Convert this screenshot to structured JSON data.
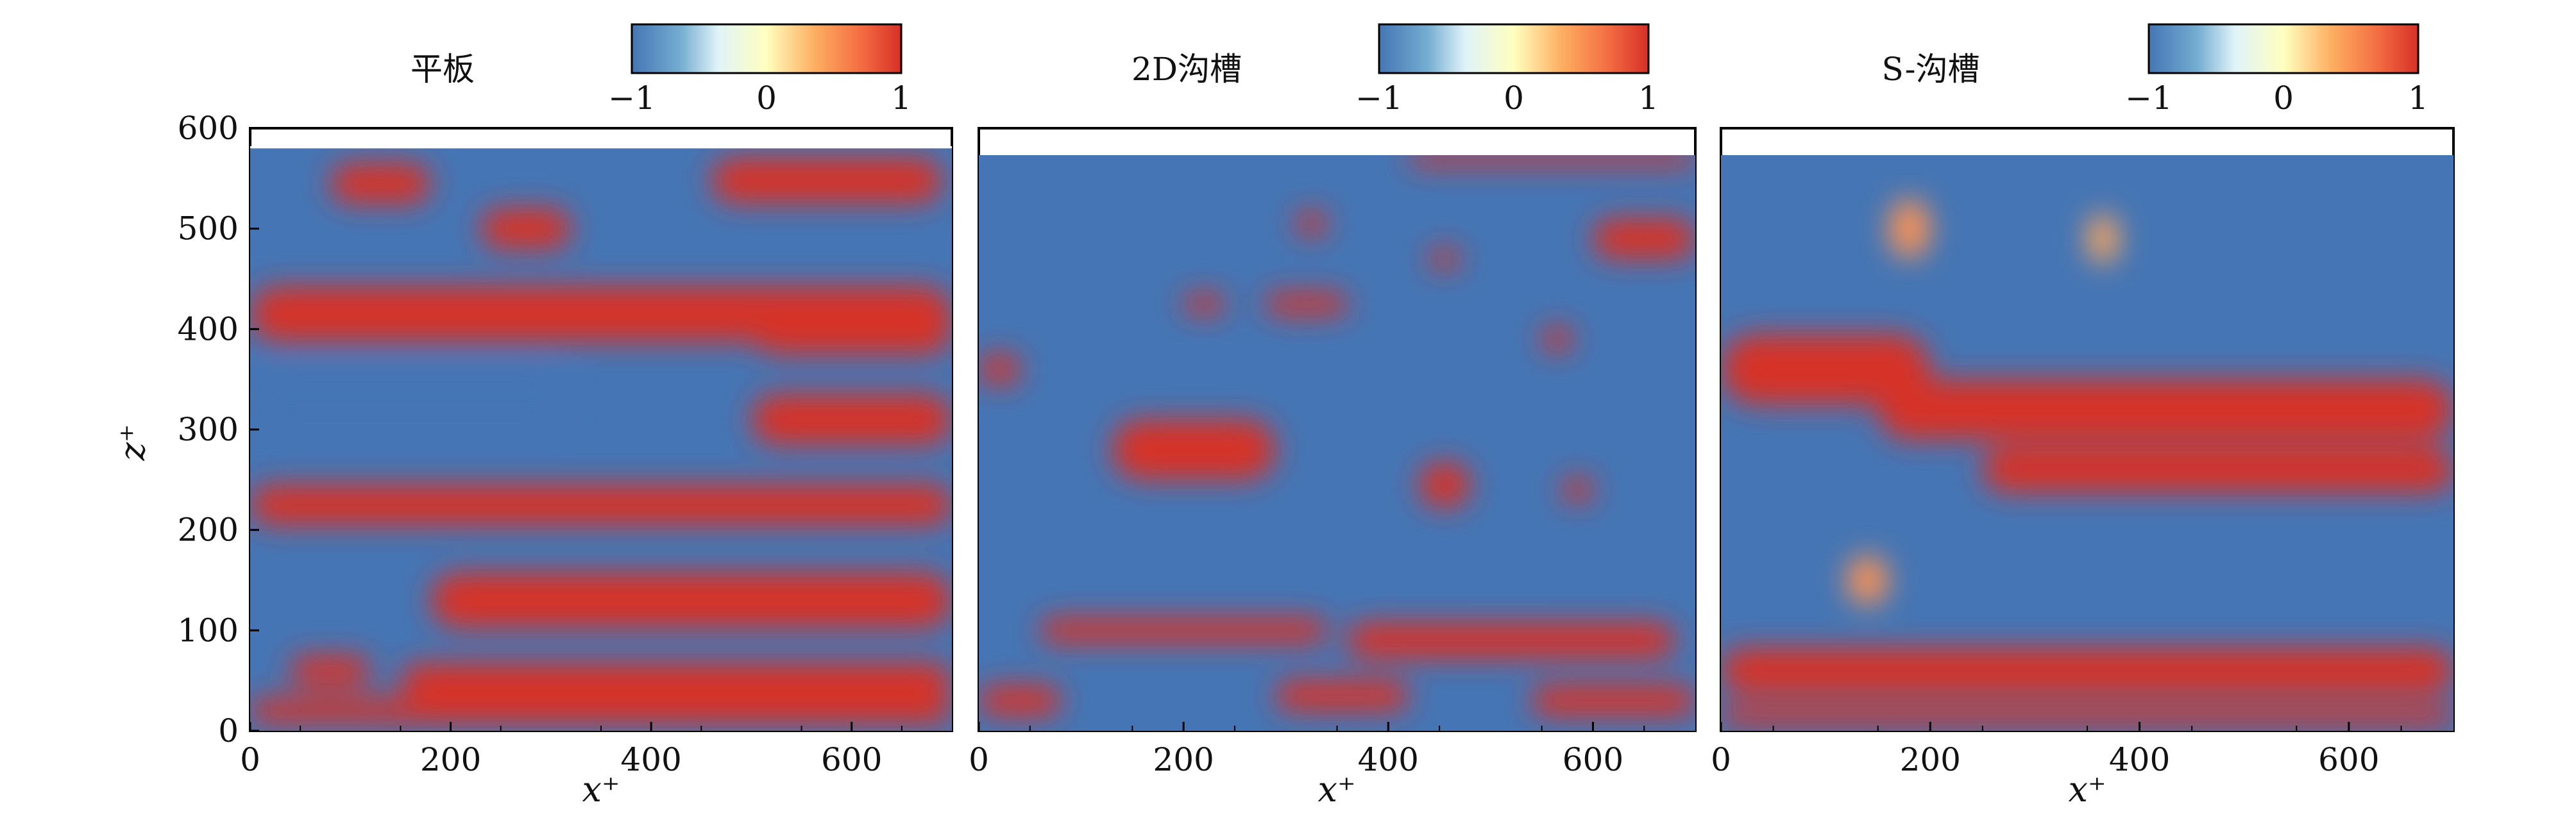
{
  "chart_data": [
    {
      "type": "heatmap",
      "title": "平板",
      "xlabel": "x⁺",
      "ylabel": "z⁺",
      "xlim": [
        0,
        700
      ],
      "ylim": [
        0,
        600
      ],
      "data_extent_z": 580,
      "xticks": [
        "0",
        "200",
        "400",
        "600"
      ],
      "yticks": [
        "0",
        "100",
        "200",
        "300",
        "400",
        "500",
        "600"
      ],
      "colorbar": {
        "min": -1,
        "max": 1,
        "ticks": [
          "−1",
          "0",
          "1"
        ],
        "colormap": "RdYlBu_r"
      },
      "streaks": [
        {
          "z": 545,
          "x0": 80,
          "x1": 180,
          "v": 1,
          "w": 40
        },
        {
          "z": 548,
          "x0": 460,
          "x1": 690,
          "v": 1,
          "w": 45
        },
        {
          "z": 500,
          "x0": 230,
          "x1": 320,
          "v": 1,
          "w": 40
        },
        {
          "z": 415,
          "x0": 0,
          "x1": 700,
          "v": 1,
          "w": 55
        },
        {
          "z": 400,
          "x0": 500,
          "x1": 700,
          "v": 1,
          "w": 50
        },
        {
          "z": 330,
          "x0": 0,
          "x1": 320,
          "v": -1,
          "w": 55
        },
        {
          "z": 310,
          "x0": 500,
          "x1": 700,
          "v": 1,
          "w": 50
        },
        {
          "z": 225,
          "x0": 0,
          "x1": 700,
          "v": 1,
          "w": 40
        },
        {
          "z": 130,
          "x0": 180,
          "x1": 700,
          "v": 1,
          "w": 55
        },
        {
          "z": 60,
          "x0": 40,
          "x1": 120,
          "v": 1,
          "w": 30
        },
        {
          "z": 50,
          "x0": 150,
          "x1": 700,
          "v": 1,
          "w": 35
        },
        {
          "z": 20,
          "x0": 0,
          "x1": 700,
          "v": 1,
          "w": 25
        }
      ]
    },
    {
      "type": "heatmap",
      "title": "2D沟槽",
      "xlabel": "x⁺",
      "xlim": [
        0,
        700
      ],
      "ylim": [
        0,
        600
      ],
      "data_extent_z": 575,
      "xticks": [
        "0",
        "200",
        "400",
        "600"
      ],
      "colorbar": {
        "min": -1,
        "max": 1,
        "ticks": [
          "−1",
          "0",
          "1"
        ],
        "colormap": "RdYlBu_r"
      },
      "streaks": [
        {
          "z": 570,
          "x0": 420,
          "x1": 700,
          "v": 1,
          "w": 15
        },
        {
          "z": 490,
          "x0": 600,
          "x1": 700,
          "v": 1,
          "w": 40
        },
        {
          "z": 505,
          "x0": 310,
          "x1": 340,
          "v": 1,
          "w": 25
        },
        {
          "z": 470,
          "x0": 440,
          "x1": 470,
          "v": 1,
          "w": 20
        },
        {
          "z": 425,
          "x0": 200,
          "x1": 240,
          "v": 1,
          "w": 20
        },
        {
          "z": 425,
          "x0": 280,
          "x1": 360,
          "v": 1,
          "w": 22
        },
        {
          "z": 390,
          "x0": 550,
          "x1": 580,
          "v": 1,
          "w": 25
        },
        {
          "z": 280,
          "x0": 130,
          "x1": 290,
          "v": 1,
          "w": 60
        },
        {
          "z": 245,
          "x0": 430,
          "x1": 480,
          "v": 1,
          "w": 45
        },
        {
          "z": 240,
          "x0": 570,
          "x1": 600,
          "v": 1,
          "w": 25
        },
        {
          "z": 360,
          "x0": 0,
          "x1": 40,
          "v": 1,
          "w": 30
        },
        {
          "z": 100,
          "x0": 60,
          "x1": 340,
          "v": 1,
          "w": 25
        },
        {
          "z": 90,
          "x0": 360,
          "x1": 680,
          "v": 1,
          "w": 35
        },
        {
          "z": 30,
          "x0": 0,
          "x1": 80,
          "v": 1,
          "w": 30
        },
        {
          "z": 35,
          "x0": 290,
          "x1": 420,
          "v": 1,
          "w": 30
        },
        {
          "z": 30,
          "x0": 540,
          "x1": 700,
          "v": 1,
          "w": 30
        }
      ]
    },
    {
      "type": "heatmap",
      "title": "S-沟槽",
      "xlabel": "x⁺",
      "xlim": [
        0,
        700
      ],
      "ylim": [
        0,
        600
      ],
      "data_extent_z": 575,
      "xticks": [
        "0",
        "200",
        "400",
        "600"
      ],
      "colorbar": {
        "min": -1,
        "max": 1,
        "ticks": [
          "−1",
          "0",
          "1"
        ],
        "colormap": "RdYlBu_r"
      },
      "streaks": [
        {
          "z": 360,
          "x0": 0,
          "x1": 200,
          "v": 1,
          "w": 70
        },
        {
          "z": 320,
          "x0": 150,
          "x1": 700,
          "v": 1,
          "w": 60
        },
        {
          "z": 260,
          "x0": 250,
          "x1": 700,
          "v": 1,
          "w": 45
        },
        {
          "z": 60,
          "x0": 0,
          "x1": 700,
          "v": 1,
          "w": 45
        },
        {
          "z": 15,
          "x0": 0,
          "x1": 700,
          "v": 1,
          "w": 20
        },
        {
          "z": 500,
          "x0": 160,
          "x1": 200,
          "v": 0.5,
          "w": 60
        },
        {
          "z": 490,
          "x0": 350,
          "x1": 380,
          "v": 0.4,
          "w": 50
        },
        {
          "z": 150,
          "x0": 120,
          "x1": 160,
          "v": 0.5,
          "w": 50
        }
      ]
    }
  ]
}
